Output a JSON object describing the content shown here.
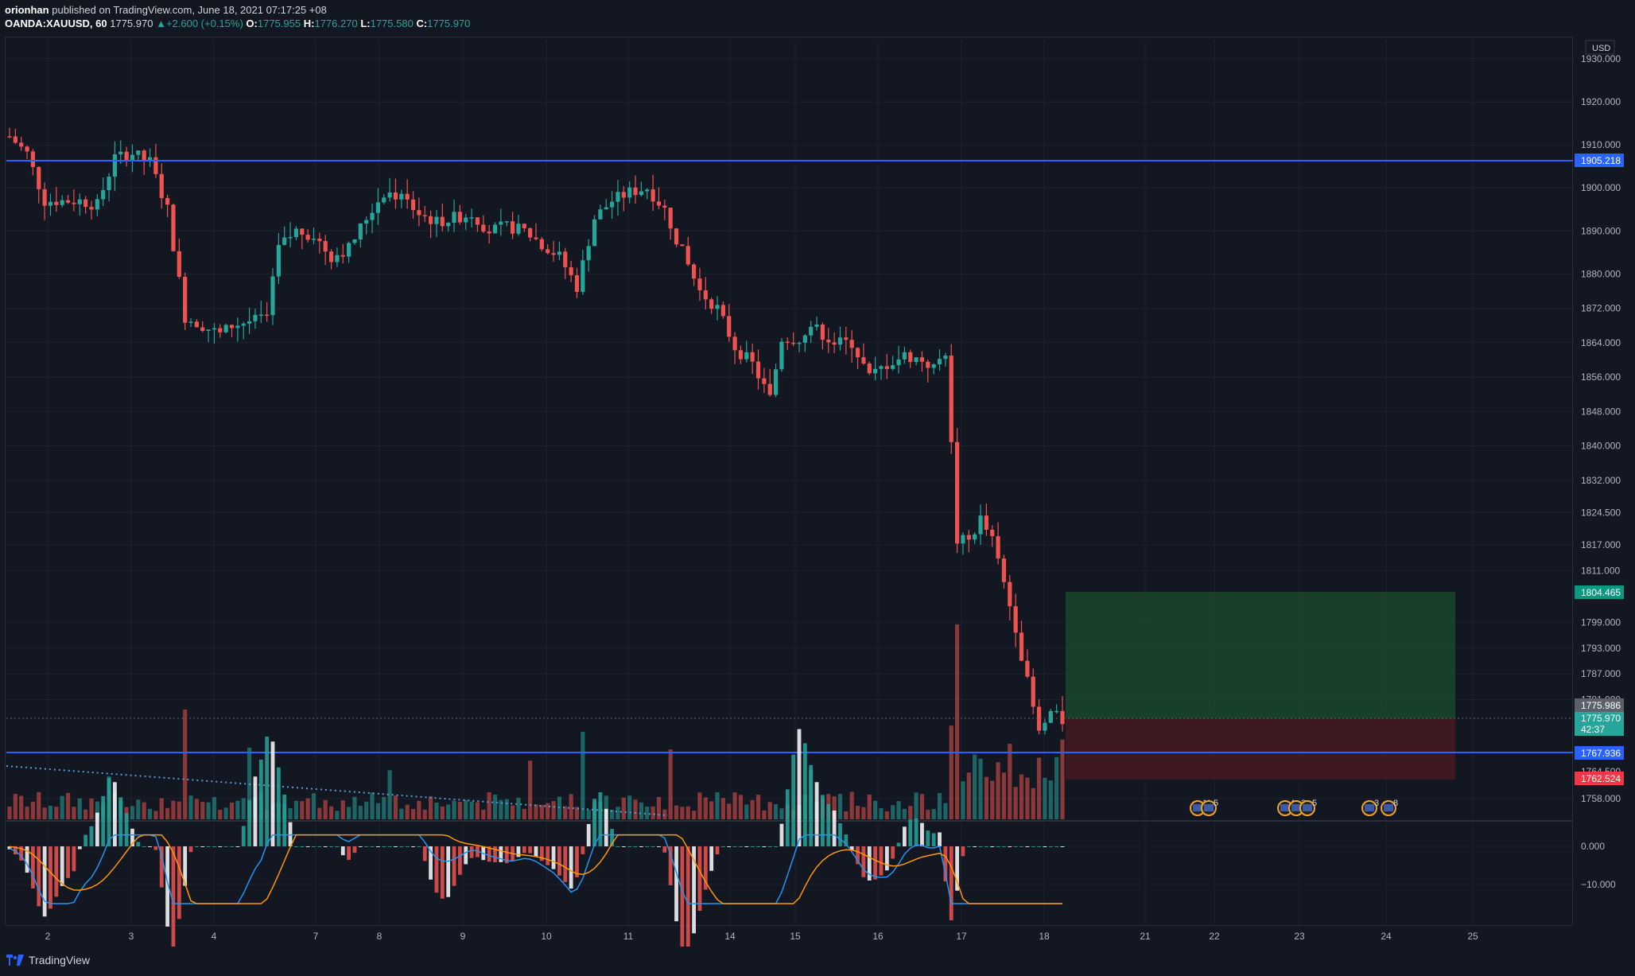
{
  "header": {
    "author": "orionhan",
    "published_text": "published on TradingView.com, June 18, 2021 07:17:25 +08",
    "symbol": "OANDA:XAUUSD, 60",
    "last_price": "1775.970",
    "change_arrow": "▲",
    "change_text": "+2.600 (+0.15%)",
    "open_label": "O:",
    "open_value": "1775.955",
    "high_label": "H:",
    "high_value": "1776.270",
    "low_label": "L:",
    "low_value": "1775.580",
    "close_label": "C:",
    "close_value": "1775.970"
  },
  "price_axis": {
    "currency": "USD",
    "ticks": [
      "1930.000",
      "1920.000",
      "1910.000",
      "1900.000",
      "1890.000",
      "1880.000",
      "1872.000",
      "1864.000",
      "1856.000",
      "1848.000",
      "1840.000",
      "1832.000",
      "1824.500",
      "1817.000",
      "1811.000",
      "1799.000",
      "1793.000",
      "1787.000",
      "1781.000",
      "1758.000"
    ],
    "partial_ticks": [
      "1764.500"
    ],
    "labels": {
      "hline_upper": "1905.218",
      "target": "1804.465",
      "prev_close": "1775.986",
      "current": "1775.970",
      "countdown": "42:37",
      "entry": "1767.936",
      "stop": "1762.524"
    }
  },
  "macd_axis": {
    "ticks": [
      "0.000",
      "−10.000"
    ]
  },
  "time_axis": {
    "labels": [
      "2",
      "3",
      "4",
      "7",
      "8",
      "9",
      "10",
      "11",
      "14",
      "15",
      "16",
      "17",
      "18",
      "21",
      "22",
      "23",
      "24",
      "25"
    ]
  },
  "event_markers": [
    {
      "id": "ev1",
      "label": "11"
    },
    {
      "id": "ev2",
      "label": "5"
    },
    {
      "id": "ev3",
      "label": "4"
    },
    {
      "id": "ev4",
      "label": "3"
    },
    {
      "id": "ev5",
      "label": "5"
    },
    {
      "id": "ev6",
      "label": "3"
    },
    {
      "id": "ev7",
      "label": "8"
    }
  ],
  "colors": {
    "background": "#131722",
    "grid": "#1e222d",
    "up": "#26a69a",
    "down": "#ef5350",
    "hline": "#2962ff",
    "macd_line": "#2196f3",
    "signal_line": "#ff9800",
    "target_zone": "#1b4d2a",
    "stop_zone": "#4a1a22"
  },
  "chart_data": {
    "type": "candlestick",
    "symbol": "OANDA:XAUUSD",
    "interval": "60",
    "y_range": [
      1754,
      1934
    ],
    "volume_shown": true,
    "macd_pane": true,
    "x_dates": [
      "2",
      "3",
      "4",
      "7",
      "8",
      "9",
      "10",
      "11",
      "14",
      "15",
      "16",
      "17",
      "18"
    ],
    "close_path": [
      [
        0,
        1912
      ],
      [
        3,
        1908
      ],
      [
        6,
        1897
      ],
      [
        9,
        1897
      ],
      [
        12,
        1897
      ],
      [
        15,
        1896
      ],
      [
        18,
        1907
      ],
      [
        21,
        1908
      ],
      [
        24,
        1906
      ],
      [
        27,
        1895
      ],
      [
        30,
        1870
      ],
      [
        33,
        1868
      ],
      [
        36,
        1866
      ],
      [
        38,
        1868
      ],
      [
        41,
        1869
      ],
      [
        44,
        1870
      ],
      [
        46,
        1886
      ],
      [
        49,
        1890
      ],
      [
        52,
        1889
      ],
      [
        55,
        1884
      ],
      [
        58,
        1886
      ],
      [
        61,
        1893
      ],
      [
        64,
        1899
      ],
      [
        67,
        1898
      ],
      [
        70,
        1894
      ],
      [
        73,
        1892
      ],
      [
        76,
        1893
      ],
      [
        79,
        1894
      ],
      [
        82,
        1890
      ],
      [
        85,
        1891
      ],
      [
        88,
        1890
      ],
      [
        91,
        1887
      ],
      [
        94,
        1884
      ],
      [
        97,
        1877
      ],
      [
        100,
        1893
      ],
      [
        103,
        1897
      ],
      [
        106,
        1899
      ],
      [
        109,
        1900
      ],
      [
        112,
        1895
      ],
      [
        115,
        1885
      ],
      [
        118,
        1876
      ],
      [
        121,
        1872
      ],
      [
        124,
        1863
      ],
      [
        127,
        1859
      ],
      [
        130,
        1851
      ],
      [
        132,
        1865
      ],
      [
        135,
        1865
      ],
      [
        138,
        1867
      ],
      [
        141,
        1864
      ],
      [
        144,
        1864
      ],
      [
        147,
        1856
      ],
      [
        150,
        1859
      ],
      [
        153,
        1861
      ],
      [
        156,
        1860
      ],
      [
        158,
        1858
      ],
      [
        160,
        1862
      ],
      [
        162,
        1818
      ],
      [
        164,
        1818
      ],
      [
        166,
        1823
      ],
      [
        168,
        1818
      ],
      [
        170,
        1808
      ],
      [
        172,
        1798
      ],
      [
        174,
        1785
      ],
      [
        176,
        1773
      ],
      [
        178,
        1778
      ],
      [
        180,
        1776
      ]
    ],
    "macd": {
      "zero": 0,
      "min": -15,
      "max": 3
    },
    "position": {
      "target": 1804.465,
      "entry": 1775.97,
      "stop": 1762.524
    },
    "horizontal_lines": [
      1905.218,
      1767.936
    ]
  }
}
